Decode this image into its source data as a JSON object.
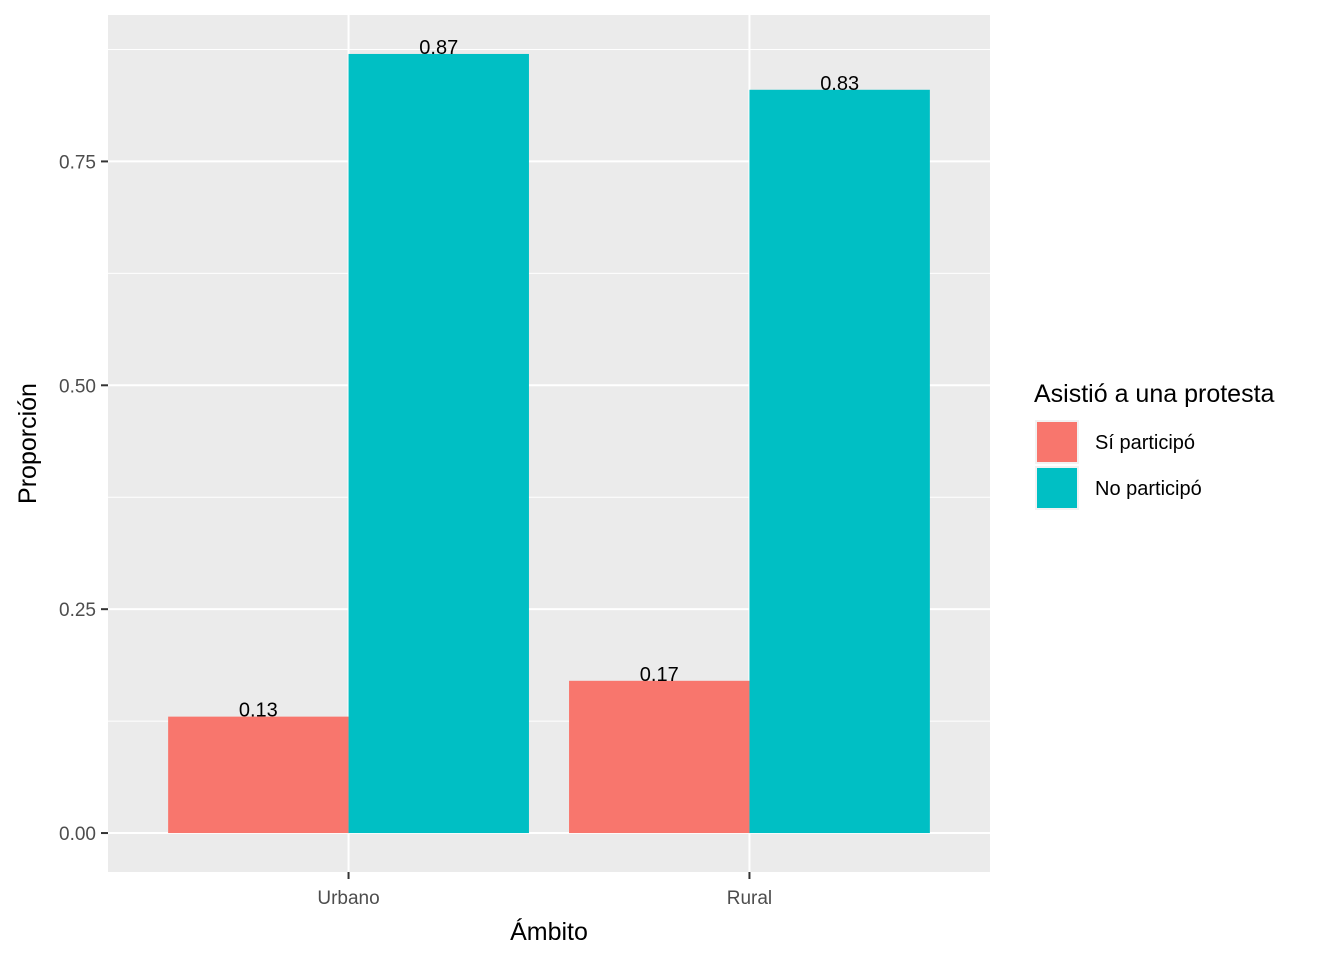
{
  "chart_data": {
    "type": "bar",
    "categories": [
      "Urbano",
      "Rural"
    ],
    "series": [
      {
        "name": "Sí participó",
        "values": [
          0.13,
          0.17
        ],
        "color": "#F8766D"
      },
      {
        "name": "No participó",
        "values": [
          0.87,
          0.83
        ],
        "color": "#00BFC4"
      }
    ],
    "data_labels": [
      [
        "0.13",
        "0.17"
      ],
      [
        "0.87",
        "0.83"
      ]
    ],
    "xlabel": "Ámbito",
    "ylabel": "Proporción",
    "ylim": [
      -0.0435,
      0.9135
    ],
    "yticks": [
      0,
      0.25,
      0.5,
      0.75
    ],
    "ytick_labels": [
      "0.00",
      "0.25",
      "0.50",
      "0.75"
    ],
    "legend_title": "Asistió a una protesta",
    "legend_position": "right",
    "grid": true,
    "panel_background": "#EBEBEB",
    "grid_color": "#FFFFFF"
  }
}
